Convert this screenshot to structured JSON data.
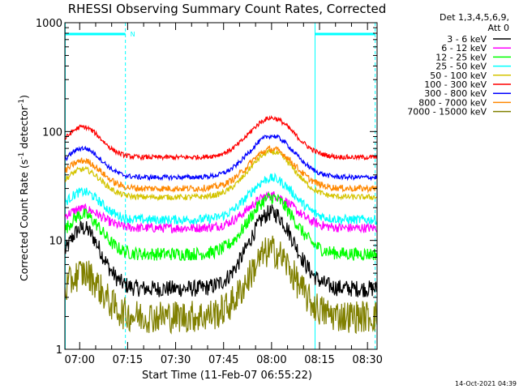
{
  "chart_data": {
    "type": "line",
    "title": "RHESSI Observing Summary Count Rates, Corrected",
    "xlabel": "Start Time (11-Feb-07 06:55:22)",
    "ylabel_main": "Corrected Count Rate (s",
    "ylabel_sup1": "-1",
    "ylabel_mid": " detector",
    "ylabel_sup2": "-1",
    "ylabel_end": ")",
    "y_scale": "log",
    "ylim": [
      1,
      1000
    ],
    "xlim": [
      "06:55:22",
      "08:33:00"
    ],
    "x_ticks": [
      "07:00",
      "07:15",
      "07:30",
      "07:45",
      "08:00",
      "08:15",
      "08:30"
    ],
    "x_tick_minutes": [
      420,
      435,
      450,
      465,
      480,
      495,
      510
    ],
    "x_range_minutes": [
      415.37,
      513.0
    ],
    "y_ticks": [
      {
        "value": 1,
        "label": "1"
      },
      {
        "value": 10,
        "label": "10"
      },
      {
        "value": 100,
        "label": "100"
      },
      {
        "value": 1000,
        "label": "1000"
      }
    ],
    "legend_position": "top-right (outside plot)",
    "legend_header": [
      "Det 1,3,4,5,6,9,",
      "Att 0"
    ],
    "night_marker_label": "N",
    "night_marker_color": "#00ffff",
    "intervals": [
      {
        "start_min": 415.5,
        "end_min": 434.3
      },
      {
        "start_min": 493.6,
        "end_min": 512.4
      }
    ],
    "timestamp": "14-Oct-2021 04:39",
    "series": [
      {
        "name": "3 - 6 keV",
        "color": "#000000",
        "base": 3.6,
        "bump1": 3.6,
        "bump2": 5.0,
        "noise": 0.18
      },
      {
        "name": "6 - 12 keV",
        "color": "#ff00ff",
        "base": 13.0,
        "bump1": 1.5,
        "bump2": 2.0,
        "noise": 0.1
      },
      {
        "name": "12 - 25 keV",
        "color": "#00ff00",
        "base": 7.5,
        "bump1": 2.3,
        "bump2": 3.3,
        "noise": 0.14
      },
      {
        "name": "25 - 50 keV",
        "color": "#00ffff",
        "base": 15.5,
        "bump1": 1.8,
        "bump2": 2.4,
        "noise": 0.1
      },
      {
        "name": "50 - 100 keV",
        "color": "#d4c400",
        "base": 25.0,
        "bump1": 1.8,
        "bump2": 2.6,
        "noise": 0.06
      },
      {
        "name": "100 - 300 keV",
        "color": "#ff0000",
        "base": 58.0,
        "bump1": 1.9,
        "bump2": 2.3,
        "noise": 0.05
      },
      {
        "name": "300 - 800 keV",
        "color": "#0000ff",
        "base": 38.0,
        "bump1": 1.85,
        "bump2": 2.4,
        "noise": 0.05
      },
      {
        "name": "800 - 7000 keV",
        "color": "#ff8800",
        "base": 30.0,
        "bump1": 1.8,
        "bump2": 2.3,
        "noise": 0.07
      },
      {
        "name": "7000 - 15000 keV",
        "color": "#808000",
        "base": 2.0,
        "bump1": 2.5,
        "bump2": 4.0,
        "noise": 0.35
      }
    ]
  }
}
